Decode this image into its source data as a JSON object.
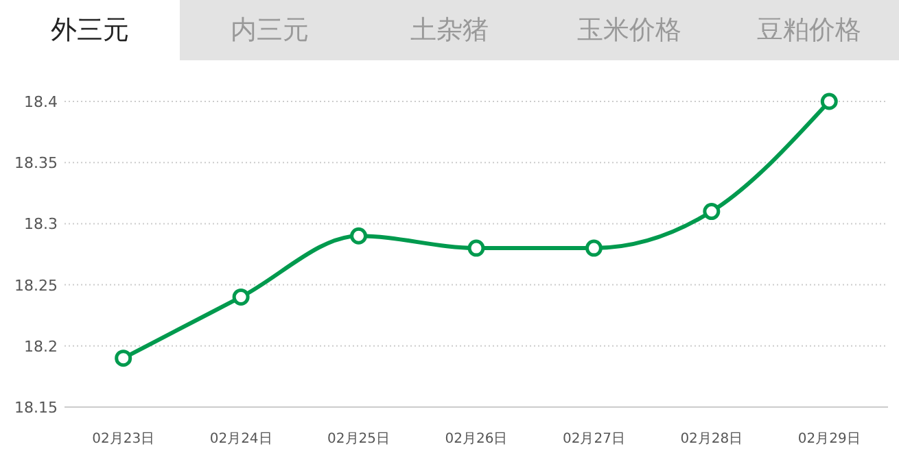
{
  "chart_data": {
    "type": "line",
    "annotations": [
      "外三元",
      "内三元",
      "土杂猪",
      "玉米价格",
      "豆粕价格"
    ],
    "categories": [
      "02月23日",
      "02月24日",
      "02月25日",
      "02月26日",
      "02月27日",
      "02月28日",
      "02月29日"
    ],
    "series": [
      {
        "color": "#009a4e",
        "values": [
          18.19,
          18.24,
          18.29,
          18.28,
          18.28,
          18.31,
          18.4
        ]
      }
    ],
    "ylim": [
      18.15,
      18.4
    ],
    "yticks": [
      18.15,
      18.2,
      18.25,
      18.3,
      18.35,
      18.4
    ],
    "grid": "y",
    "marker": "circle",
    "line_style": "solid"
  }
}
